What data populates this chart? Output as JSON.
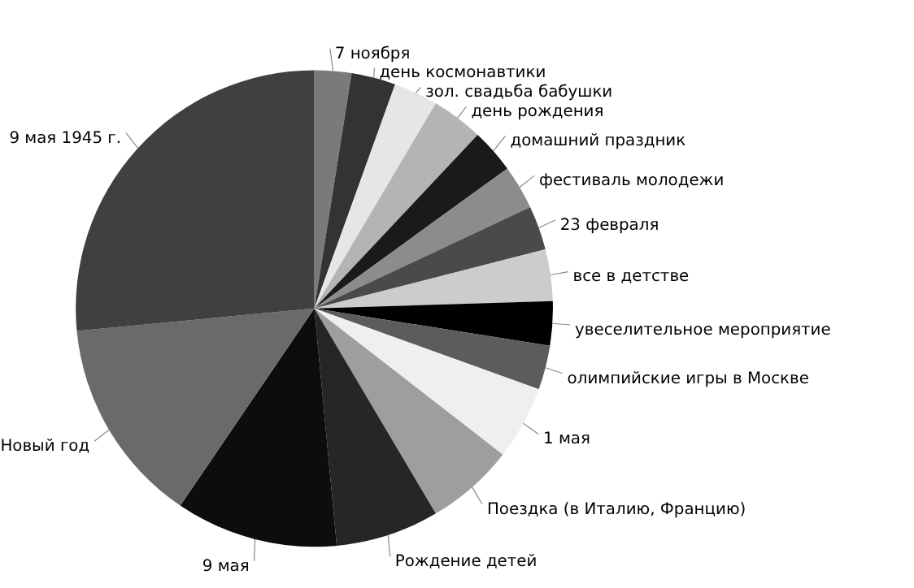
{
  "chart_data": {
    "type": "pie",
    "legend": false,
    "categories": [
      "7 ноября",
      "день космонавтики",
      "зол. свадьба бабушки",
      "день рождения",
      "домашний праздник",
      "фестиваль молодежи",
      "23 февраля",
      "все в детстве",
      "увеселительное мероприятие",
      "олимпийские игры в Москве",
      "1 мая",
      "Поездка (в Италию, Францию)",
      "Рождение детей",
      "9 мая",
      "Новый год",
      "9 мая 1945 г."
    ],
    "values": [
      2.5,
      3,
      3,
      3.5,
      3,
      3,
      3,
      3.5,
      3,
      3,
      5,
      6,
      7,
      11,
      14,
      26.5
    ],
    "colors": [
      "#7a7a7a",
      "#333333",
      "#e6e6e6",
      "#b4b4b4",
      "#1a1a1a",
      "#8c8c8c",
      "#4a4a4a",
      "#cccccc",
      "#000000",
      "#5c5c5c",
      "#efefef",
      "#9e9e9e",
      "#262626",
      "#0d0d0d",
      "#6a6a6a",
      "#404040"
    ]
  }
}
